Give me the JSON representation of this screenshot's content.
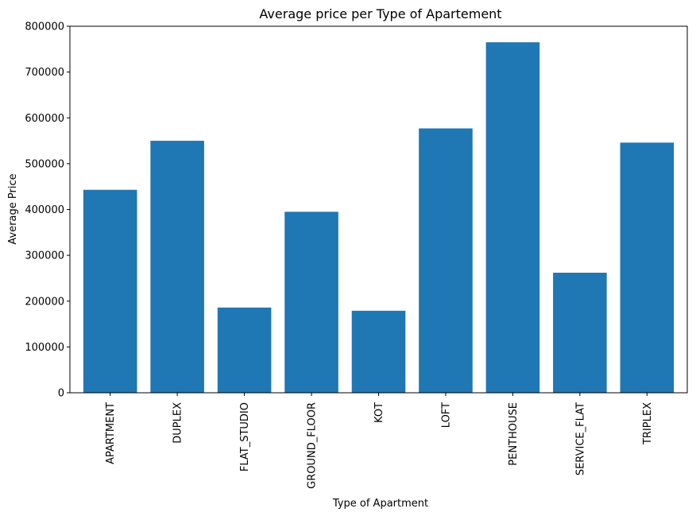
{
  "chart_data": {
    "type": "bar",
    "title": "Average price per Type of Apartement",
    "xlabel": "Type of Apartment",
    "ylabel": "Average Price",
    "categories": [
      "APARTMENT",
      "DUPLEX",
      "FLAT_STUDIO",
      "GROUND_FLOOR",
      "KOT",
      "LOFT",
      "PENTHOUSE",
      "SERVICE_FLAT",
      "TRIPLEX"
    ],
    "values": [
      443000,
      550000,
      186000,
      395000,
      179000,
      577000,
      765000,
      262000,
      546000
    ],
    "ylim": [
      0,
      800000
    ],
    "yticks": [
      0,
      100000,
      200000,
      300000,
      400000,
      500000,
      600000,
      700000,
      800000
    ],
    "ytick_labels": [
      "0",
      "100000",
      "200000",
      "300000",
      "400000",
      "500000",
      "600000",
      "700000",
      "800000"
    ],
    "grid": false,
    "bar_color": "#1f77b4"
  }
}
